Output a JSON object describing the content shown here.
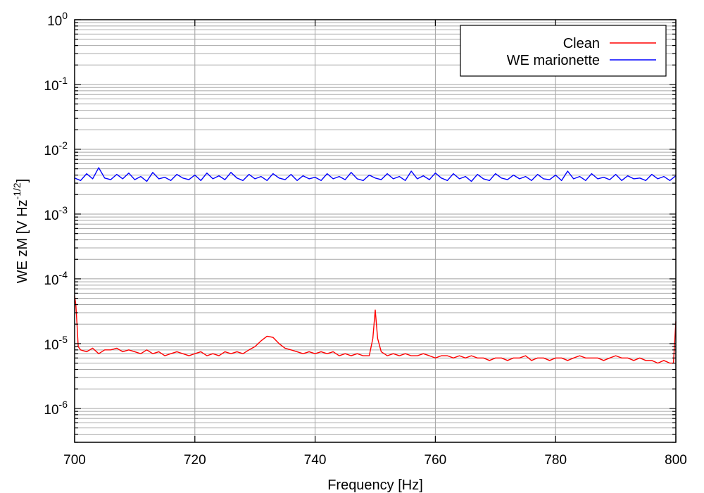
{
  "chart_data": {
    "type": "line",
    "title": "",
    "xlabel": "Frequency [Hz]",
    "ylabel": "WE zM [V Hz",
    "ylabel_exponent": "-1/2",
    "ylabel_suffix": "]",
    "xlim": [
      700,
      800
    ],
    "ylim": [
      3e-07,
      1
    ],
    "yscale": "log",
    "grid": true,
    "legend_position": "top-right",
    "x_ticks": [
      "700",
      "720",
      "740",
      "760",
      "780",
      "800"
    ],
    "y_ticks": [
      {
        "base": "10",
        "exp": "0"
      },
      {
        "base": "10",
        "exp": "-1"
      },
      {
        "base": "10",
        "exp": "-2"
      },
      {
        "base": "10",
        "exp": "-3"
      },
      {
        "base": "10",
        "exp": "-4"
      },
      {
        "base": "10",
        "exp": "-5"
      },
      {
        "base": "10",
        "exp": "-6"
      }
    ],
    "series": [
      {
        "name": "Clean",
        "color": "#ff0000",
        "x": [
          700,
          700.2,
          700.4,
          700.6,
          701,
          702,
          703,
          704,
          705,
          706,
          707,
          708,
          709,
          710,
          711,
          712,
          713,
          714,
          715,
          716,
          717,
          718,
          719,
          720,
          721,
          722,
          723,
          724,
          725,
          726,
          727,
          728,
          729,
          730,
          731,
          732,
          733,
          734,
          735,
          736,
          737,
          738,
          739,
          740,
          741,
          742,
          743,
          744,
          745,
          746,
          747,
          748,
          749,
          749.6,
          750,
          750.4,
          751,
          752,
          753,
          754,
          755,
          756,
          757,
          758,
          759,
          760,
          761,
          762,
          763,
          764,
          765,
          766,
          767,
          768,
          769,
          770,
          771,
          772,
          773,
          774,
          775,
          776,
          777,
          778,
          779,
          780,
          781,
          782,
          783,
          784,
          785,
          786,
          787,
          788,
          789,
          790,
          791,
          792,
          793,
          794,
          795,
          796,
          797,
          798,
          799,
          799.6,
          800
        ],
        "y": [
          5.5e-05,
          4e-05,
          2e-05,
          9e-06,
          8e-06,
          7.5e-06,
          8.5e-06,
          7e-06,
          8e-06,
          8e-06,
          8.5e-06,
          7.5e-06,
          8e-06,
          7.5e-06,
          7e-06,
          8e-06,
          7e-06,
          7.5e-06,
          6.5e-06,
          7e-06,
          7.5e-06,
          7e-06,
          6.5e-06,
          7e-06,
          7.5e-06,
          6.5e-06,
          7e-06,
          6.5e-06,
          7.5e-06,
          7e-06,
          7.5e-06,
          7e-06,
          8e-06,
          9e-06,
          1.1e-05,
          1.3e-05,
          1.25e-05,
          1e-05,
          8.5e-06,
          8e-06,
          7.5e-06,
          7e-06,
          7.5e-06,
          7e-06,
          7.5e-06,
          7e-06,
          7.5e-06,
          6.5e-06,
          7e-06,
          6.5e-06,
          7e-06,
          6.5e-06,
          6.5e-06,
          1.2e-05,
          3.3e-05,
          1.2e-05,
          7.5e-06,
          6.5e-06,
          7e-06,
          6.5e-06,
          7e-06,
          6.5e-06,
          6.5e-06,
          7e-06,
          6.5e-06,
          6e-06,
          6.5e-06,
          6.5e-06,
          6e-06,
          6.5e-06,
          6e-06,
          6.5e-06,
          6e-06,
          6e-06,
          5.5e-06,
          6e-06,
          6e-06,
          5.5e-06,
          6e-06,
          6e-06,
          6.5e-06,
          5.5e-06,
          6e-06,
          6e-06,
          5.5e-06,
          6e-06,
          6e-06,
          5.5e-06,
          6e-06,
          6.5e-06,
          6e-06,
          6e-06,
          6e-06,
          5.5e-06,
          6e-06,
          6.5e-06,
          6e-06,
          6e-06,
          5.5e-06,
          6e-06,
          5.5e-06,
          5.5e-06,
          5e-06,
          5.5e-06,
          5e-06,
          5e-06,
          2.2e-05
        ]
      },
      {
        "name": "WE marionette",
        "color": "#0000ff",
        "x": [
          700,
          701,
          702,
          703,
          704,
          705,
          706,
          707,
          708,
          709,
          710,
          711,
          712,
          713,
          714,
          715,
          716,
          717,
          718,
          719,
          720,
          721,
          722,
          723,
          724,
          725,
          726,
          727,
          728,
          729,
          730,
          731,
          732,
          733,
          734,
          735,
          736,
          737,
          738,
          739,
          740,
          741,
          742,
          743,
          744,
          745,
          746,
          747,
          748,
          749,
          750,
          751,
          752,
          753,
          754,
          755,
          756,
          757,
          758,
          759,
          760,
          761,
          762,
          763,
          764,
          765,
          766,
          767,
          768,
          769,
          770,
          771,
          772,
          773,
          774,
          775,
          776,
          777,
          778,
          779,
          780,
          781,
          782,
          783,
          784,
          785,
          786,
          787,
          788,
          789,
          790,
          791,
          792,
          793,
          794,
          795,
          796,
          797,
          798,
          799,
          800
        ],
        "y": [
          0.0036,
          0.0033,
          0.0042,
          0.0035,
          0.0052,
          0.0036,
          0.0034,
          0.0041,
          0.0035,
          0.0043,
          0.0034,
          0.0038,
          0.0032,
          0.0044,
          0.0035,
          0.0037,
          0.0033,
          0.0041,
          0.0036,
          0.0034,
          0.004,
          0.0033,
          0.0043,
          0.0035,
          0.0039,
          0.0034,
          0.0044,
          0.0036,
          0.0033,
          0.0041,
          0.0035,
          0.0038,
          0.0033,
          0.0042,
          0.0036,
          0.0034,
          0.0041,
          0.0033,
          0.0039,
          0.0035,
          0.0037,
          0.0033,
          0.0042,
          0.0035,
          0.0038,
          0.0034,
          0.0044,
          0.0035,
          0.0033,
          0.004,
          0.0036,
          0.0034,
          0.0042,
          0.0035,
          0.0038,
          0.0033,
          0.0046,
          0.0035,
          0.0039,
          0.0034,
          0.0043,
          0.0036,
          0.0033,
          0.0042,
          0.0035,
          0.0038,
          0.0032,
          0.0041,
          0.0035,
          0.0033,
          0.0042,
          0.0036,
          0.0034,
          0.004,
          0.0035,
          0.0038,
          0.0033,
          0.0041,
          0.0035,
          0.0034,
          0.004,
          0.0033,
          0.0046,
          0.0035,
          0.0038,
          0.0033,
          0.0042,
          0.0035,
          0.0037,
          0.0034,
          0.0041,
          0.0033,
          0.0039,
          0.0035,
          0.0036,
          0.0033,
          0.0041,
          0.0035,
          0.0038,
          0.0033,
          0.0039
        ]
      }
    ]
  }
}
